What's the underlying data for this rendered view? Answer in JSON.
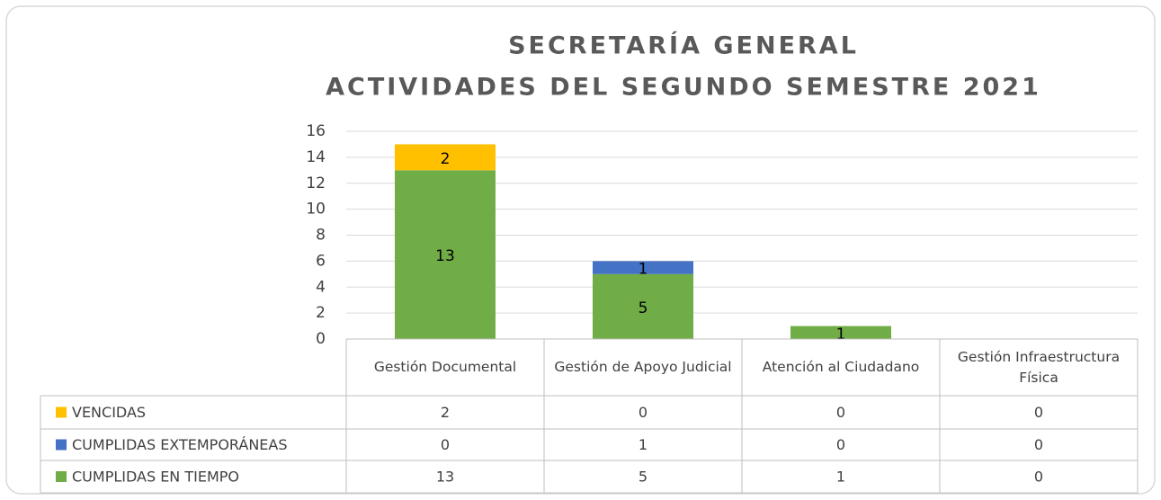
{
  "chart_data": {
    "type": "bar",
    "stacked": true,
    "title": [
      "SECRETARÍA GENERAL",
      "ACTIVIDADES DEL SEGUNDO SEMESTRE 2021"
    ],
    "categories": [
      "Gestión Documental",
      "Gestión de Apoyo Judicial",
      "Atención al Ciudadano",
      "Gestión Infraestructura Física"
    ],
    "series": [
      {
        "name": "CUMPLIDAS EN TIEMPO",
        "color": "#70ad47",
        "values": [
          13,
          5,
          1,
          0
        ]
      },
      {
        "name": "CUMPLIDAS EXTEMPORÁNEAS",
        "color": "#4472c4",
        "values": [
          0,
          1,
          0,
          0
        ]
      },
      {
        "name": "VENCIDAS",
        "color": "#ffc000",
        "values": [
          2,
          0,
          0,
          0
        ]
      }
    ],
    "ylim": [
      0,
      16
    ],
    "yticks": [
      0,
      2,
      4,
      6,
      8,
      10,
      12,
      14,
      16
    ],
    "grid": true,
    "data_table": true
  }
}
